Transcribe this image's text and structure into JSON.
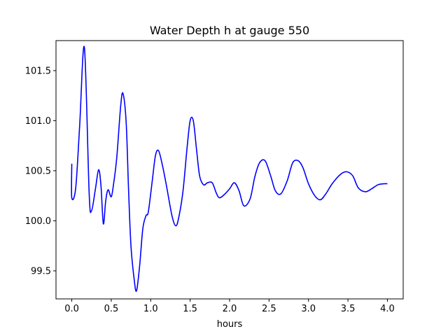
{
  "chart_data": {
    "type": "line",
    "title": "Water Depth h at gauge 550",
    "xlabel": "hours",
    "ylabel": "",
    "xlim": [
      -0.2,
      4.2
    ],
    "ylim": [
      99.22,
      101.8
    ],
    "xticks": [
      0.0,
      0.5,
      1.0,
      1.5,
      2.0,
      2.5,
      3.0,
      3.5,
      4.0
    ],
    "xtick_labels": [
      "0.0",
      "0.5",
      "1.0",
      "1.5",
      "2.0",
      "2.5",
      "3.0",
      "3.5",
      "4.0"
    ],
    "yticks": [
      99.5,
      100.0,
      100.5,
      101.0,
      101.5
    ],
    "ytick_labels": [
      "99.5",
      "100.0",
      "100.5",
      "101.0",
      "101.5"
    ],
    "grid": false,
    "series": [
      {
        "color": "#0000ff",
        "x": [
          0.0,
          0.0,
          0.05,
          0.1,
          0.16,
          0.22,
          0.25,
          0.3,
          0.34,
          0.37,
          0.4,
          0.43,
          0.46,
          0.5,
          0.53,
          0.57,
          0.62,
          0.65,
          0.69,
          0.72,
          0.75,
          0.79,
          0.82,
          0.86,
          0.9,
          0.94,
          0.97,
          1.02,
          1.06,
          1.1,
          1.15,
          1.2,
          1.27,
          1.32,
          1.36,
          1.41,
          1.46,
          1.5,
          1.54,
          1.58,
          1.62,
          1.67,
          1.72,
          1.78,
          1.83,
          1.87,
          1.93,
          2.0,
          2.06,
          2.12,
          2.18,
          2.26,
          2.32,
          2.38,
          2.45,
          2.52,
          2.58,
          2.65,
          2.73,
          2.8,
          2.87,
          2.93,
          3.0,
          3.08,
          3.15,
          3.22,
          3.3,
          3.4,
          3.48,
          3.56,
          3.63,
          3.72,
          3.8,
          3.88,
          3.95,
          4.0
        ],
        "y": [
          100.57,
          100.23,
          100.33,
          100.95,
          101.73,
          100.28,
          100.1,
          100.32,
          100.51,
          100.35,
          99.97,
          100.2,
          100.31,
          100.24,
          100.37,
          100.63,
          101.15,
          101.27,
          100.97,
          100.3,
          99.75,
          99.42,
          99.3,
          99.55,
          99.92,
          100.05,
          100.09,
          100.4,
          100.65,
          100.7,
          100.55,
          100.35,
          100.05,
          99.95,
          100.05,
          100.3,
          100.72,
          101.0,
          101.0,
          100.72,
          100.45,
          100.36,
          100.38,
          100.38,
          100.28,
          100.23,
          100.26,
          100.32,
          100.38,
          100.3,
          100.15,
          100.22,
          100.44,
          100.58,
          100.6,
          100.45,
          100.3,
          100.27,
          100.4,
          100.58,
          100.6,
          100.53,
          100.37,
          100.25,
          100.21,
          100.27,
          100.37,
          100.46,
          100.49,
          100.45,
          100.33,
          100.29,
          100.32,
          100.36,
          100.37,
          100.37
        ]
      }
    ]
  }
}
